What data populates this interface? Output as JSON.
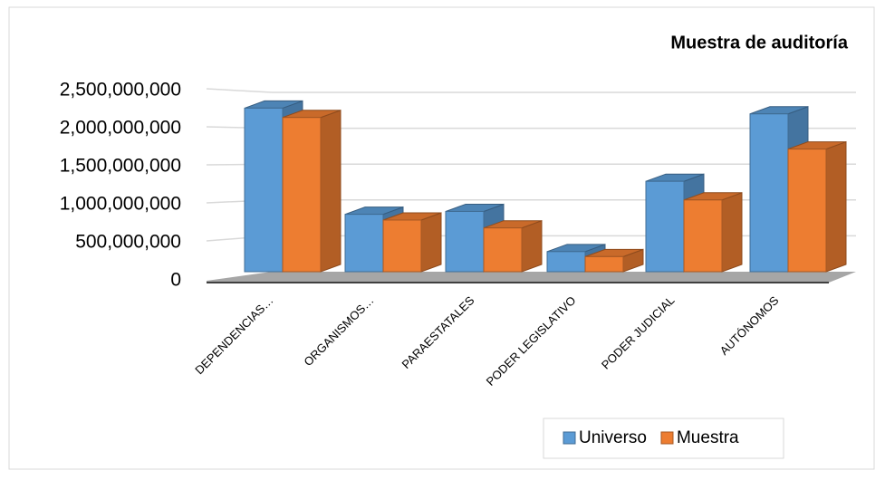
{
  "chart_data": {
    "type": "bar3d",
    "title": "Muestra de auditoría",
    "categories": [
      "DEPENDENCIAS…",
      "ORGANISMOS…",
      "PARAESTATALES",
      "PODER LEGISLATIVO",
      "PODER JUDICIAL",
      "AUTÓNOMOS"
    ],
    "series": [
      {
        "name": "Universo",
        "color": "#5b9bd5",
        "values": [
          2280000000,
          800000000,
          840000000,
          280000000,
          1260000000,
          2200000000
        ]
      },
      {
        "name": "Muestra",
        "color": "#ed7d31",
        "values": [
          2150000000,
          720000000,
          610000000,
          210000000,
          1000000000,
          1710000000
        ]
      }
    ],
    "ylim": [
      0,
      2500000000
    ],
    "yticks": [
      {
        "value": 0,
        "label": "0"
      },
      {
        "value": 500000000,
        "label": "500,000,000"
      },
      {
        "value": 1000000000,
        "label": "1,000,000,000"
      },
      {
        "value": 1500000000,
        "label": "1,500,000,000"
      },
      {
        "value": 2000000000,
        "label": "2,000,000,000"
      },
      {
        "value": 2500000000,
        "label": "2,500,000,000"
      }
    ],
    "grid": true,
    "legend": "bottom-right"
  }
}
